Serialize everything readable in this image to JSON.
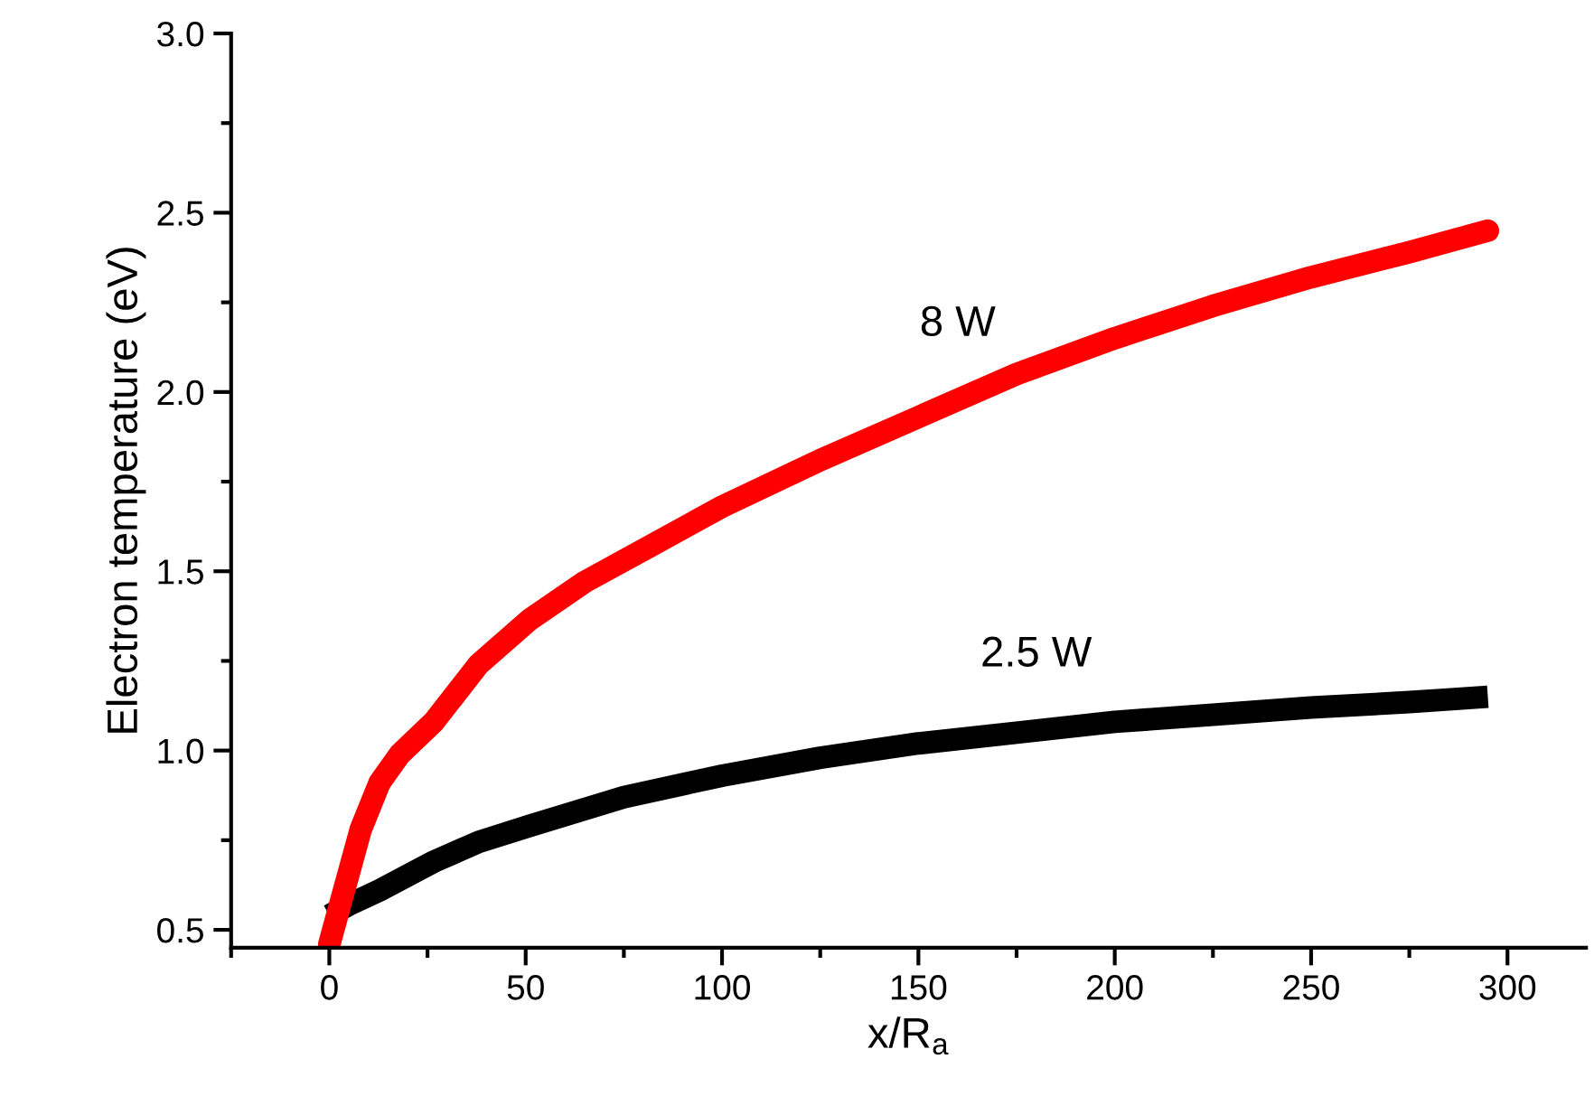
{
  "chart_data": {
    "type": "line",
    "xlabel": "x/R$_{a}$",
    "ylabel": "Electron temperature (eV)",
    "xlim": [
      -25,
      320
    ],
    "xticks": [
      0,
      50,
      100,
      150,
      200,
      250,
      300
    ],
    "ylim": [
      0.45,
      3.0
    ],
    "yticks": [
      {
        "value": 0.5,
        "label": "0.5"
      },
      {
        "value": 1,
        "label": "1.0"
      },
      {
        "value": 1.5,
        "label": "1.5"
      },
      {
        "value": 2,
        "label": "2.0"
      },
      {
        "value": 2.5,
        "label": "2.5"
      },
      {
        "value": 3,
        "label": "3.0"
      }
    ],
    "grid": false,
    "legend": false,
    "marker": "none",
    "line_style": "solid",
    "series": [
      {
        "name": "2.5 W",
        "color": "#000000",
        "x": [
          0,
          5,
          12.8,
          26.6,
          38,
          51,
          75,
          100,
          125,
          150,
          175,
          200,
          225,
          250,
          275,
          295
        ],
        "values": [
          0.54,
          0.57,
          0.61,
          0.69,
          0.745,
          0.79,
          0.87,
          0.93,
          0.98,
          1.02,
          1.05,
          1.08,
          1.1,
          1.12,
          1.135,
          1.15
        ]
      },
      {
        "name": "8 W",
        "color": "#ff0000",
        "x": [
          0,
          3,
          8,
          12.8,
          18,
          26.6,
          38,
          51,
          65,
          80,
          100,
          125,
          150,
          175,
          200,
          225,
          250,
          275,
          295
        ],
        "values": [
          0.46,
          0.58,
          0.78,
          0.91,
          0.99,
          1.08,
          1.24,
          1.365,
          1.47,
          1.56,
          1.68,
          1.81,
          1.93,
          2.05,
          2.15,
          2.24,
          2.32,
          2.39,
          2.45
        ]
      }
    ]
  }
}
